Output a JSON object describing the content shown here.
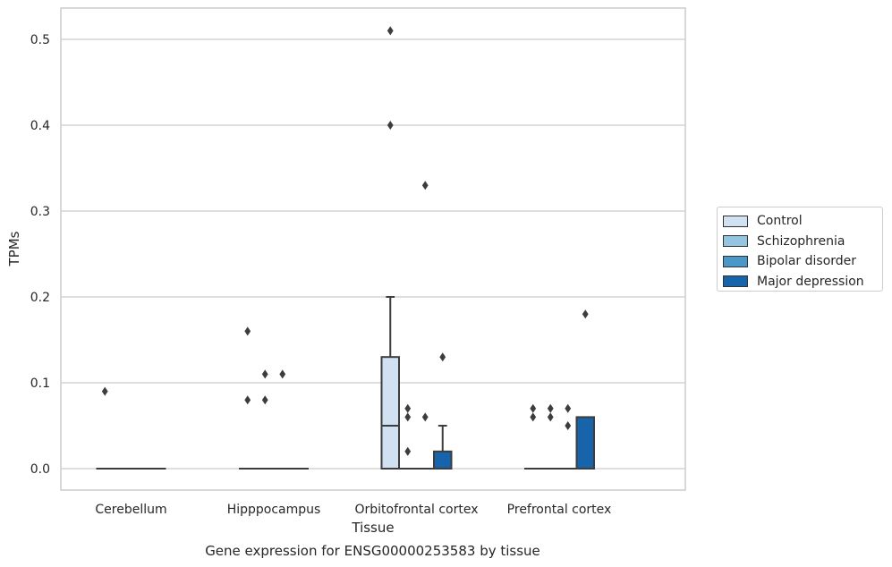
{
  "chart_data": {
    "type": "box",
    "ylabel": "TPMs",
    "xlabel": "Tissue",
    "caption": "Gene expression for ENSG00000253583 by tissue",
    "ylim": [
      -0.025,
      0.535
    ],
    "yticks": [
      0.0,
      0.1,
      0.2,
      0.3,
      0.4,
      0.5
    ],
    "ytick_labels": [
      "0.0",
      "0.1",
      "0.2",
      "0.3",
      "0.4",
      "0.5"
    ],
    "grid": "horizontal",
    "legend_position": "right",
    "categories": [
      "Cerebellum",
      "Hipppocampus",
      "Orbitofrontal cortex",
      "Prefrontal cortex"
    ],
    "series": [
      {
        "name": "Control",
        "color": "#d0e1f2",
        "boxes": [
          {
            "q1": 0,
            "median": 0,
            "q3": 0,
            "whisker_low": 0,
            "whisker_high": 0,
            "outliers": [
              0.09
            ]
          },
          {
            "q1": 0,
            "median": 0,
            "q3": 0,
            "whisker_low": 0,
            "whisker_high": 0,
            "outliers": [
              0.16,
              0.08
            ]
          },
          {
            "q1": 0,
            "median": 0.05,
            "q3": 0.13,
            "whisker_low": 0,
            "whisker_high": 0.2,
            "outliers": [
              0.51,
              0.4
            ]
          },
          {
            "q1": 0,
            "median": 0,
            "q3": 0,
            "whisker_low": 0,
            "whisker_high": 0,
            "outliers": [
              0.07,
              0.06
            ]
          }
        ]
      },
      {
        "name": "Schizophrenia",
        "color": "#94c4df",
        "boxes": [
          {
            "q1": 0,
            "median": 0,
            "q3": 0,
            "whisker_low": 0,
            "whisker_high": 0,
            "outliers": []
          },
          {
            "q1": 0,
            "median": 0,
            "q3": 0,
            "whisker_low": 0,
            "whisker_high": 0,
            "outliers": [
              0.11,
              0.08
            ]
          },
          {
            "q1": 0,
            "median": 0,
            "q3": 0,
            "whisker_low": 0,
            "whisker_high": 0,
            "outliers": [
              0.07,
              0.06,
              0.02
            ]
          },
          {
            "q1": 0,
            "median": 0,
            "q3": 0,
            "whisker_low": 0,
            "whisker_high": 0,
            "outliers": [
              0.07,
              0.06
            ]
          }
        ]
      },
      {
        "name": "Bipolar disorder",
        "color": "#4a98c9",
        "boxes": [
          {
            "q1": 0,
            "median": 0,
            "q3": 0,
            "whisker_low": 0,
            "whisker_high": 0,
            "outliers": []
          },
          {
            "q1": 0,
            "median": 0,
            "q3": 0,
            "whisker_low": 0,
            "whisker_high": 0,
            "outliers": [
              0.11
            ]
          },
          {
            "q1": 0,
            "median": 0,
            "q3": 0,
            "whisker_low": 0,
            "whisker_high": 0,
            "outliers": [
              0.33,
              0.06
            ]
          },
          {
            "q1": 0,
            "median": 0,
            "q3": 0,
            "whisker_low": 0,
            "whisker_high": 0,
            "outliers": [
              0.07,
              0.05
            ]
          }
        ]
      },
      {
        "name": "Major depression",
        "color": "#1764ab",
        "boxes": [
          {
            "q1": 0,
            "median": 0,
            "q3": 0,
            "whisker_low": 0,
            "whisker_high": 0,
            "outliers": []
          },
          {
            "q1": 0,
            "median": 0,
            "q3": 0,
            "whisker_low": 0,
            "whisker_high": 0,
            "outliers": []
          },
          {
            "q1": 0,
            "median": 0,
            "q3": 0.02,
            "whisker_low": 0,
            "whisker_high": 0.05,
            "outliers": [
              0.13
            ]
          },
          {
            "q1": 0,
            "median": 0,
            "q3": 0.06,
            "whisker_low": 0,
            "whisker_high": 0.06,
            "outliers": [
              0.18
            ]
          }
        ]
      }
    ]
  }
}
